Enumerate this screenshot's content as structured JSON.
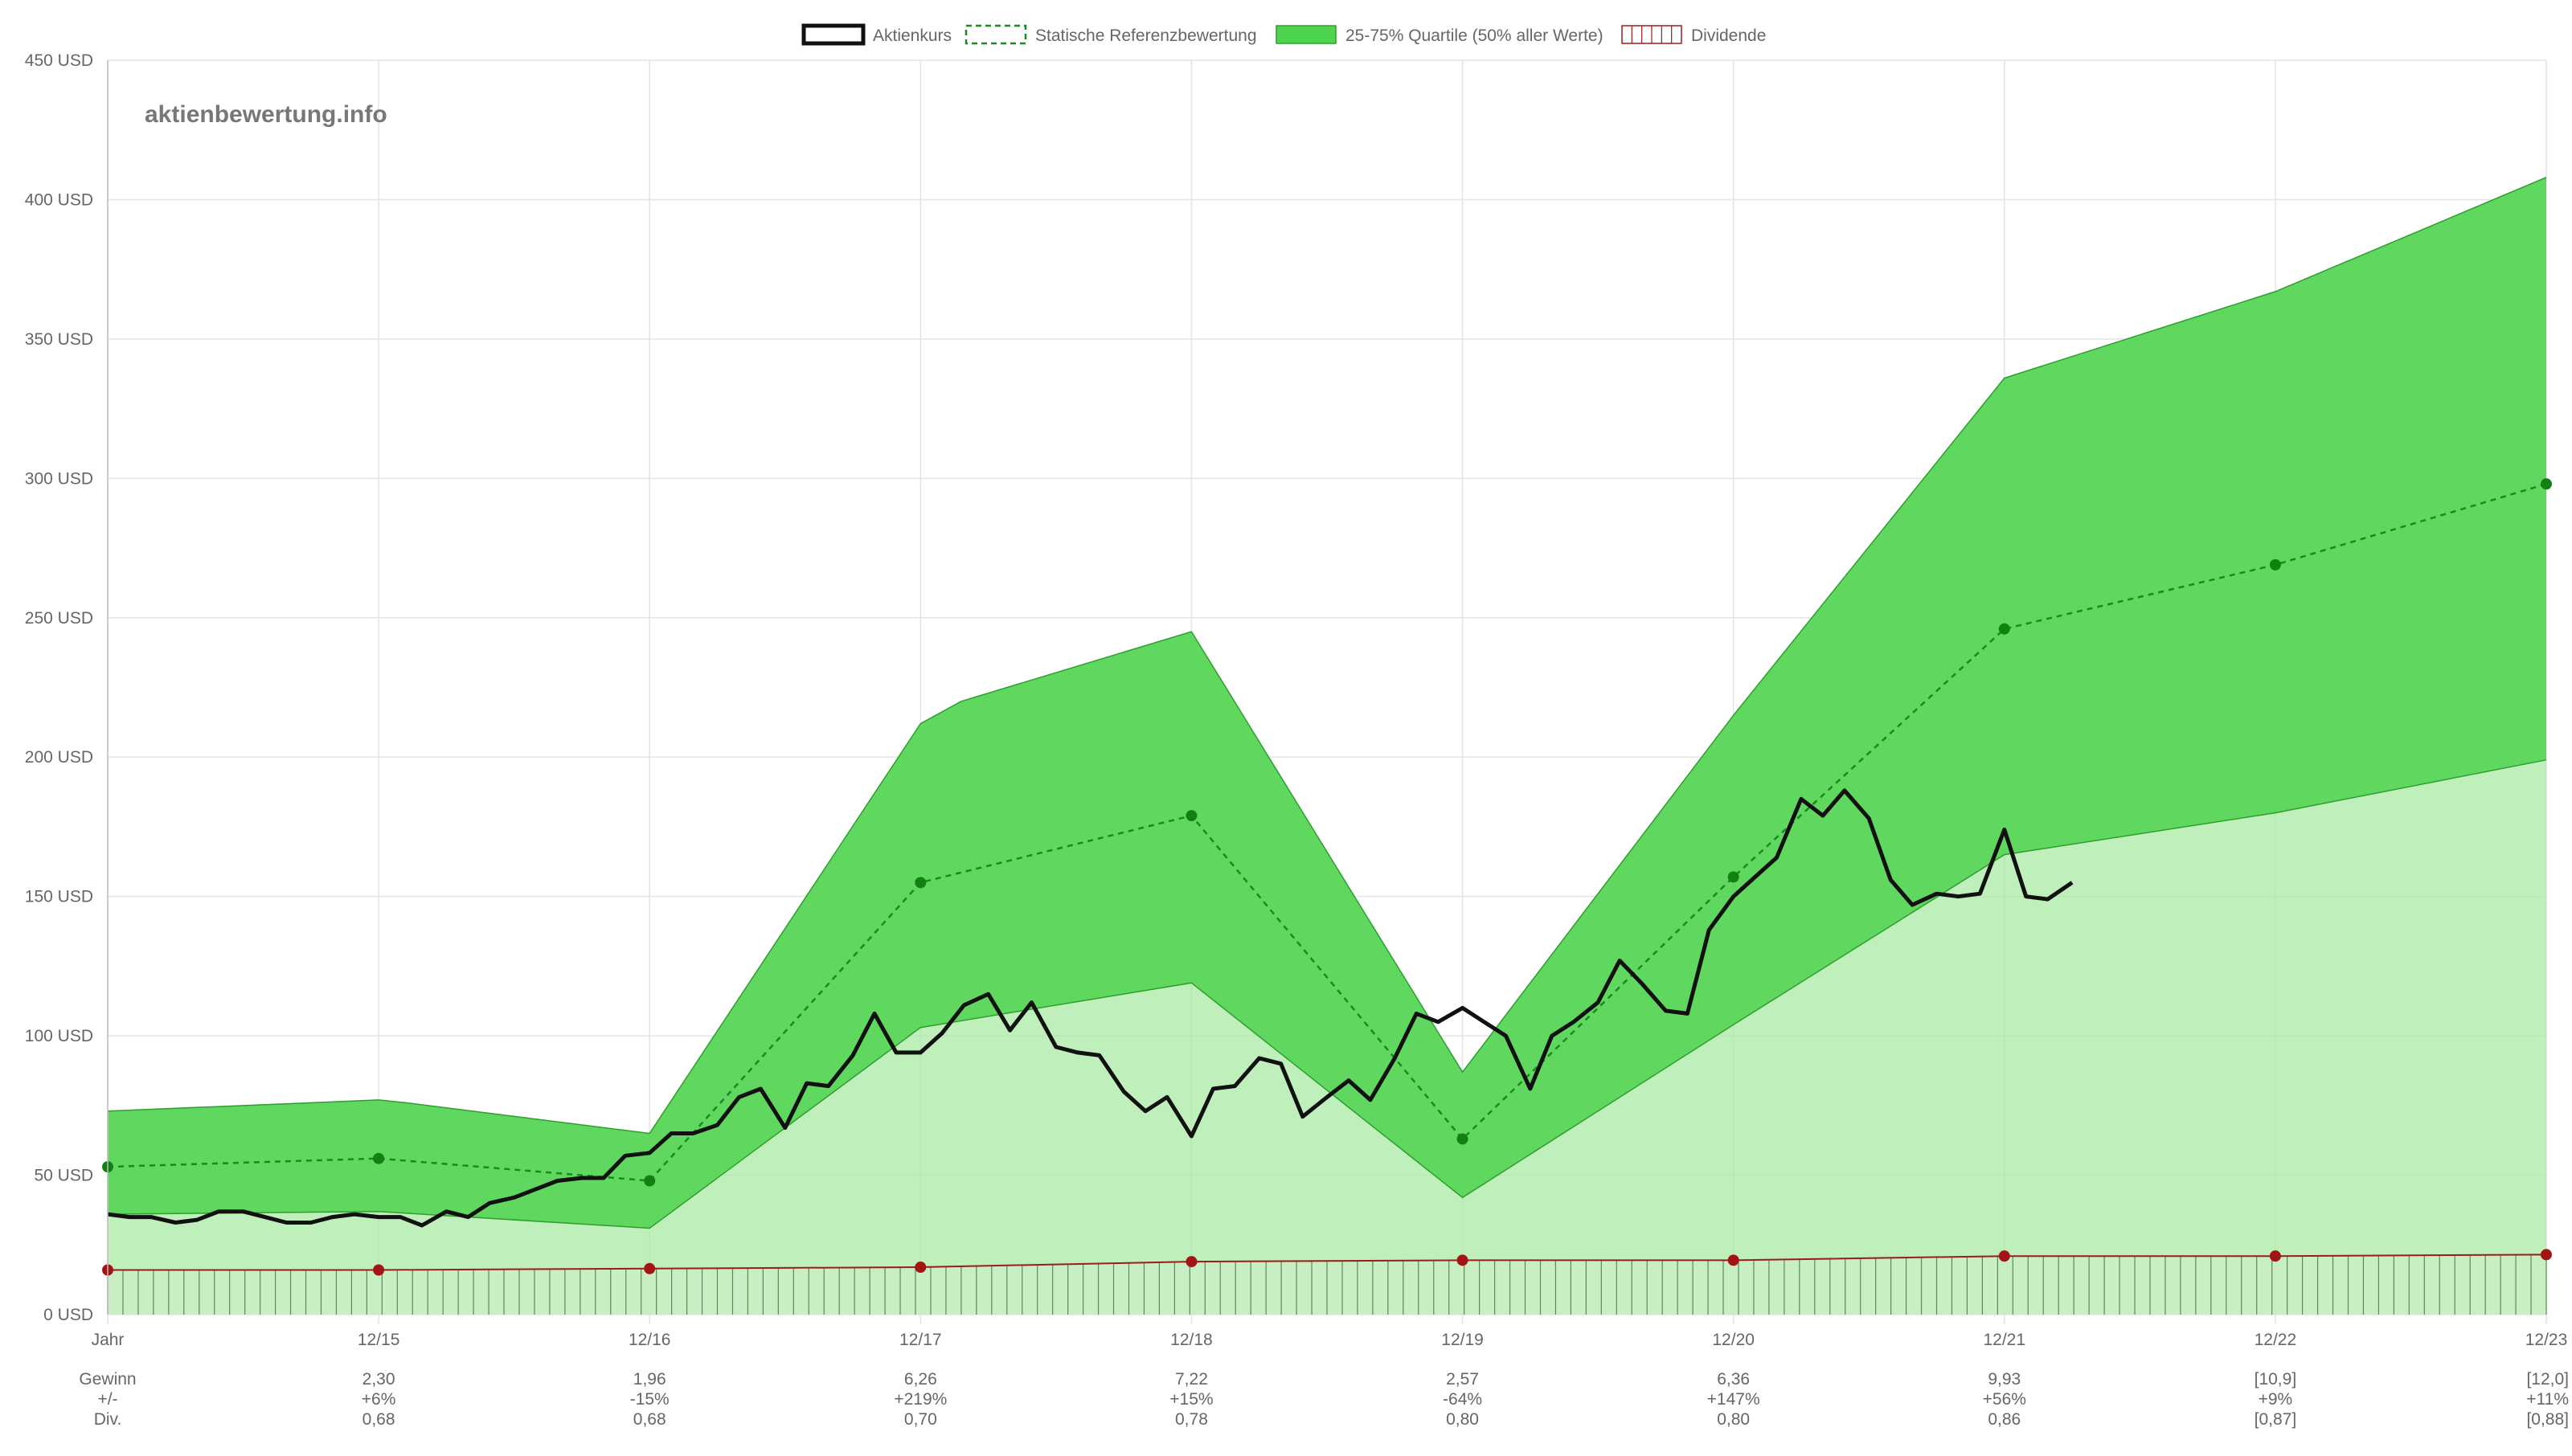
{
  "watermark": "aktienbewertung.info",
  "legend": [
    {
      "key": "aktienkurs",
      "label": "Aktienkurs"
    },
    {
      "key": "referenz",
      "label": "Statische Referenzbewertung"
    },
    {
      "key": "quartile",
      "label": "25-75% Quartile (50% aller Werte)"
    },
    {
      "key": "dividende",
      "label": "Dividende"
    }
  ],
  "colors": {
    "price": "#111111",
    "reference": "#1a8a1a",
    "band_upper": "#4fd44f",
    "band_lower": "#a9e9a4",
    "band_stroke": "#2e9e2e",
    "dividend": "#9b1c1c",
    "dividend_fill": "#c8eec4",
    "grid": "#e4e4e4",
    "reference_marker": "#138013",
    "dividend_marker": "#a31515"
  },
  "chart_data": {
    "type": "line",
    "x_categories": [
      "Jahr",
      "12/15",
      "12/16",
      "12/17",
      "12/18",
      "12/19",
      "12/20",
      "12/21",
      "12/22",
      "12/23"
    ],
    "ylim": [
      0,
      450
    ],
    "y_ticks": [
      "0 USD",
      "50 USD",
      "100 USD",
      "150 USD",
      "200 USD",
      "250 USD",
      "300 USD",
      "350 USD",
      "400 USD",
      "450 USD"
    ],
    "grid": true,
    "legend_position": "top-center",
    "quartile_band": {
      "upper": [
        [
          0,
          73
        ],
        [
          1,
          77
        ],
        [
          1.1,
          76
        ],
        [
          2,
          65
        ],
        [
          3,
          212
        ],
        [
          3.15,
          220
        ],
        [
          4,
          245
        ],
        [
          5,
          87
        ],
        [
          6,
          215
        ],
        [
          7,
          336
        ],
        [
          8,
          367
        ],
        [
          9,
          408
        ]
      ],
      "lower": [
        [
          0,
          36
        ],
        [
          1,
          37
        ],
        [
          2,
          31
        ],
        [
          3,
          103
        ],
        [
          4,
          119
        ],
        [
          5,
          42
        ],
        [
          6,
          104
        ],
        [
          7,
          165
        ],
        [
          8,
          180
        ],
        [
          9,
          199
        ]
      ]
    },
    "reference": [
      [
        0,
        53
      ],
      [
        1,
        56
      ],
      [
        2,
        48
      ],
      [
        3,
        155
      ],
      [
        4,
        179
      ],
      [
        5,
        63
      ],
      [
        6,
        157
      ],
      [
        7,
        246
      ],
      [
        8,
        269
      ],
      [
        9,
        298
      ]
    ],
    "dividend": [
      [
        0,
        16
      ],
      [
        1,
        16
      ],
      [
        2,
        16.5
      ],
      [
        3,
        17
      ],
      [
        4,
        19
      ],
      [
        5,
        19.5
      ],
      [
        6,
        19.5
      ],
      [
        7,
        21
      ],
      [
        8,
        21
      ],
      [
        9,
        21.5
      ]
    ],
    "price": [
      [
        0,
        36
      ],
      [
        0.08,
        35
      ],
      [
        0.16,
        35
      ],
      [
        0.25,
        33
      ],
      [
        0.33,
        34
      ],
      [
        0.41,
        37
      ],
      [
        0.5,
        37
      ],
      [
        0.58,
        35
      ],
      [
        0.66,
        33
      ],
      [
        0.75,
        33
      ],
      [
        0.83,
        35
      ],
      [
        0.91,
        36
      ],
      [
        1.0,
        35
      ],
      [
        1.08,
        35
      ],
      [
        1.16,
        32
      ],
      [
        1.25,
        37
      ],
      [
        1.33,
        35
      ],
      [
        1.41,
        40
      ],
      [
        1.5,
        42
      ],
      [
        1.58,
        45
      ],
      [
        1.66,
        48
      ],
      [
        1.75,
        49
      ],
      [
        1.83,
        49
      ],
      [
        1.91,
        57
      ],
      [
        2.0,
        58
      ],
      [
        2.08,
        65
      ],
      [
        2.16,
        65
      ],
      [
        2.25,
        68
      ],
      [
        2.33,
        78
      ],
      [
        2.41,
        81
      ],
      [
        2.5,
        67
      ],
      [
        2.58,
        83
      ],
      [
        2.66,
        82
      ],
      [
        2.75,
        93
      ],
      [
        2.83,
        108
      ],
      [
        2.91,
        94
      ],
      [
        3.0,
        94
      ],
      [
        3.08,
        101
      ],
      [
        3.16,
        111
      ],
      [
        3.25,
        115
      ],
      [
        3.33,
        102
      ],
      [
        3.41,
        112
      ],
      [
        3.5,
        96
      ],
      [
        3.58,
        94
      ],
      [
        3.66,
        93
      ],
      [
        3.75,
        80
      ],
      [
        3.83,
        73
      ],
      [
        3.91,
        78
      ],
      [
        4.0,
        64
      ],
      [
        4.08,
        81
      ],
      [
        4.16,
        82
      ],
      [
        4.25,
        92
      ],
      [
        4.33,
        90
      ],
      [
        4.41,
        71
      ],
      [
        4.5,
        78
      ],
      [
        4.58,
        84
      ],
      [
        4.66,
        77
      ],
      [
        4.75,
        92
      ],
      [
        4.83,
        108
      ],
      [
        4.91,
        105
      ],
      [
        5.0,
        110
      ],
      [
        5.08,
        105
      ],
      [
        5.16,
        100
      ],
      [
        5.25,
        81
      ],
      [
        5.33,
        100
      ],
      [
        5.41,
        105
      ],
      [
        5.5,
        112
      ],
      [
        5.58,
        127
      ],
      [
        5.66,
        119
      ],
      [
        5.75,
        109
      ],
      [
        5.83,
        108
      ],
      [
        5.91,
        138
      ],
      [
        6.0,
        150
      ],
      [
        6.08,
        157
      ],
      [
        6.16,
        164
      ],
      [
        6.25,
        185
      ],
      [
        6.33,
        179
      ],
      [
        6.41,
        188
      ],
      [
        6.5,
        178
      ],
      [
        6.58,
        156
      ],
      [
        6.66,
        147
      ],
      [
        6.75,
        151
      ],
      [
        6.83,
        150
      ],
      [
        6.91,
        151
      ],
      [
        7.0,
        174
      ],
      [
        7.08,
        150
      ],
      [
        7.16,
        149
      ],
      [
        7.25,
        155
      ]
    ]
  },
  "table": {
    "row_labels": [
      "Gewinn",
      "+/-",
      "Div."
    ],
    "columns": [
      {
        "x": 1,
        "gewinn": "2,30",
        "change": "+6%",
        "div": "0,68"
      },
      {
        "x": 2,
        "gewinn": "1,96",
        "change": "-15%",
        "div": "0,68"
      },
      {
        "x": 3,
        "gewinn": "6,26",
        "change": "+219%",
        "div": "0,70"
      },
      {
        "x": 4,
        "gewinn": "7,22",
        "change": "+15%",
        "div": "0,78"
      },
      {
        "x": 5,
        "gewinn": "2,57",
        "change": "-64%",
        "div": "0,80"
      },
      {
        "x": 6,
        "gewinn": "6,36",
        "change": "+147%",
        "div": "0,80"
      },
      {
        "x": 7,
        "gewinn": "9,93",
        "change": "+56%",
        "div": "0,86"
      },
      {
        "x": 8,
        "gewinn": "[10,9]",
        "change": "+9%",
        "div": "[0,87]"
      },
      {
        "x": 9,
        "gewinn": "[12,0]",
        "change": "+11%",
        "div": "[0,88]"
      }
    ]
  }
}
